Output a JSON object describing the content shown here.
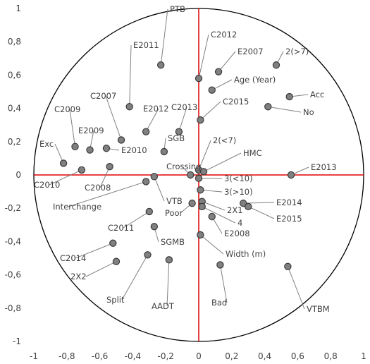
{
  "chart_data": {
    "type": "scatter",
    "title": "",
    "xlabel": "",
    "ylabel": "",
    "xlim": [
      -1,
      1
    ],
    "ylim": [
      -1,
      1
    ],
    "x_ticks": [
      "-1",
      "-0,8",
      "-0,6",
      "-0,4",
      "-0,2",
      "0",
      "0,2",
      "0,4",
      "0,6",
      "0,8",
      "1"
    ],
    "y_ticks": [
      "1",
      "0,8",
      "0,6",
      "0,4",
      "0,2",
      "0",
      "-0,2",
      "-0,4",
      "-0,6",
      "-0,8",
      "-1"
    ],
    "circle_radius": 1,
    "axis_line_color": "#e00000",
    "point_color": "#808080",
    "points": [
      {
        "label": "PTB",
        "x": -0.23,
        "y": 0.66
      },
      {
        "label": "E2011",
        "x": -0.42,
        "y": 0.41
      },
      {
        "label": "C2012",
        "x": 0.0,
        "y": 0.58
      },
      {
        "label": "E2007",
        "x": 0.12,
        "y": 0.62
      },
      {
        "label": "2(>7)",
        "x": 0.47,
        "y": 0.66
      },
      {
        "label": "Age (Year)",
        "x": 0.08,
        "y": 0.51
      },
      {
        "label": "Acc",
        "x": 0.55,
        "y": 0.47
      },
      {
        "label": "No",
        "x": 0.42,
        "y": 0.41
      },
      {
        "label": "C2015",
        "x": 0.01,
        "y": 0.33
      },
      {
        "label": "C2013",
        "x": -0.12,
        "y": 0.26
      },
      {
        "label": "E2012",
        "x": -0.32,
        "y": 0.26
      },
      {
        "label": "C2007",
        "x": -0.47,
        "y": 0.21
      },
      {
        "label": "C2009",
        "x": -0.75,
        "y": 0.17
      },
      {
        "label": "E2009",
        "x": -0.66,
        "y": 0.15
      },
      {
        "label": "E2010",
        "x": -0.56,
        "y": 0.16
      },
      {
        "label": "SGB",
        "x": -0.21,
        "y": 0.14
      },
      {
        "label": "Exc",
        "x": -0.82,
        "y": 0.07
      },
      {
        "label": "C2010",
        "x": -0.71,
        "y": 0.03
      },
      {
        "label": "C2008",
        "x": -0.54,
        "y": 0.05
      },
      {
        "label": "2(<7)",
        "x": 0.0,
        "y": 0.03
      },
      {
        "label": "HMC",
        "x": 0.03,
        "y": 0.02
      },
      {
        "label": "Crossing",
        "x": -0.05,
        "y": 0.0
      },
      {
        "label": "3(<10)",
        "x": 0.0,
        "y": -0.02
      },
      {
        "label": "E2013",
        "x": 0.56,
        "y": 0.0
      },
      {
        "label": "VTB",
        "x": -0.27,
        "y": -0.01
      },
      {
        "label": "Interchange",
        "x": -0.32,
        "y": -0.04
      },
      {
        "label": "3(>10)",
        "x": 0.01,
        "y": -0.09
      },
      {
        "label": "Poor",
        "x": -0.04,
        "y": -0.17
      },
      {
        "label": "2X1",
        "x": 0.02,
        "y": -0.16
      },
      {
        "label": "E2014",
        "x": 0.27,
        "y": -0.17
      },
      {
        "label": "E2015",
        "x": 0.3,
        "y": -0.19
      },
      {
        "label": "4",
        "x": 0.02,
        "y": -0.19
      },
      {
        "label": "E2008",
        "x": 0.08,
        "y": -0.25
      },
      {
        "label": "C2011",
        "x": -0.3,
        "y": -0.22
      },
      {
        "label": "SGMB",
        "x": -0.27,
        "y": -0.31
      },
      {
        "label": "Width (m)",
        "x": 0.01,
        "y": -0.36
      },
      {
        "label": "C2014",
        "x": -0.52,
        "y": -0.41
      },
      {
        "label": "2X2",
        "x": -0.5,
        "y": -0.52
      },
      {
        "label": "Split",
        "x": -0.31,
        "y": -0.48
      },
      {
        "label": "AADT",
        "x": -0.18,
        "y": -0.51
      },
      {
        "label": "Bad",
        "x": 0.13,
        "y": -0.54
      },
      {
        "label": "VTBM",
        "x": 0.54,
        "y": -0.55
      }
    ]
  }
}
